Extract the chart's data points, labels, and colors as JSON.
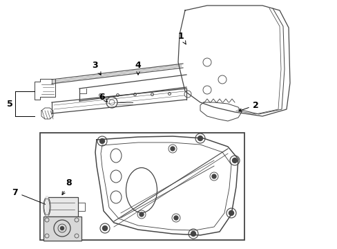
{
  "bg_color": "#ffffff",
  "line_color": "#444444",
  "figsize": [
    4.89,
    3.6
  ],
  "dpi": 100,
  "xlim": [
    0,
    489
  ],
  "ylim": [
    0,
    360
  ]
}
